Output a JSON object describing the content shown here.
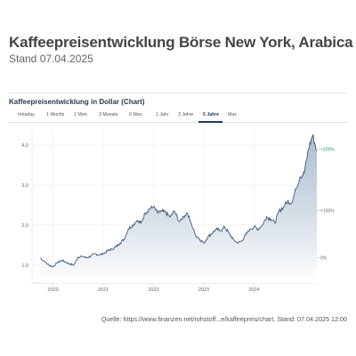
{
  "header": {
    "title": "Kaffeepreisentwicklung Börse New York, Arabica",
    "subtitle": "Stand 07.04.2025"
  },
  "card": {
    "title": "Kaffeepreisentwicklung in Dollar (Chart)"
  },
  "tabs": [
    {
      "label": "Intraday",
      "active": false
    },
    {
      "label": "1 Woche",
      "active": false
    },
    {
      "label": "1 Mon.",
      "active": false
    },
    {
      "label": "3 Monate",
      "active": false
    },
    {
      "label": "6 Mon.",
      "active": false
    },
    {
      "label": "1 Jahr",
      "active": false
    },
    {
      "label": "3 Jahre",
      "active": false
    },
    {
      "label": "5 Jahre",
      "active": true
    },
    {
      "label": "Max",
      "active": false
    }
  ],
  "source": "Quelle: https://www.finanzen.net/rohstoff...e/kaffeepreis/chart, Stand: 07.04.2025 12:00",
  "colors": {
    "line": "#3d5a7a",
    "area_top": "#9fb3c9",
    "area_bottom": "#ffffff",
    "pct_positive": "#2e9b5c",
    "tab_active": "#1f3b5c"
  },
  "chart_data": {
    "type": "area",
    "title": "",
    "xlabel": "",
    "ylabel": "",
    "x_ticks": [
      "2020",
      "2021",
      "2022",
      "2023",
      "2024"
    ],
    "y_ticks": [
      "1,0",
      "2,0",
      "3,0",
      "4,0"
    ],
    "y_tick_values": [
      1.0,
      2.0,
      3.0,
      4.0
    ],
    "ylim": [
      0.55,
      4.4
    ],
    "right_axis_ticks": [
      "+205%",
      "+100%",
      "0%"
    ],
    "right_axis_values": [
      3.9,
      2.36,
      1.18
    ],
    "grid": true,
    "series": [
      {
        "x": [
          "2019-10",
          "2019-11",
          "2019-12",
          "2020-01",
          "2020-02",
          "2020-03",
          "2020-04",
          "2020-05",
          "2020-06",
          "2020-07",
          "2020-08",
          "2020-09",
          "2020-10",
          "2020-11",
          "2020-12",
          "2021-01",
          "2021-02",
          "2021-03",
          "2021-04",
          "2021-05",
          "2021-06",
          "2021-07",
          "2021-08",
          "2021-09",
          "2021-10",
          "2021-11",
          "2021-12",
          "2022-01",
          "2022-02",
          "2022-03",
          "2022-04",
          "2022-05",
          "2022-06",
          "2022-07",
          "2022-08",
          "2022-09",
          "2022-10",
          "2022-11",
          "2022-12",
          "2023-01",
          "2023-02",
          "2023-03",
          "2023-04",
          "2023-05",
          "2023-06",
          "2023-07",
          "2023-08",
          "2023-09",
          "2023-10",
          "2023-11",
          "2023-12",
          "2024-01",
          "2024-02",
          "2024-03",
          "2024-04",
          "2024-05",
          "2024-06",
          "2024-07",
          "2024-08",
          "2024-09",
          "2024-10",
          "2024-11",
          "2024-12",
          "2025-01",
          "2025-02",
          "2025-03",
          "2025-04"
        ],
        "values": [
          1.18,
          1.08,
          1.0,
          0.96,
          1.05,
          1.12,
          1.08,
          1.02,
          1.0,
          1.2,
          1.22,
          1.18,
          1.22,
          1.28,
          1.25,
          1.28,
          1.35,
          1.4,
          1.45,
          1.55,
          1.65,
          1.9,
          2.0,
          2.1,
          2.05,
          2.3,
          2.4,
          2.45,
          2.3,
          2.35,
          2.3,
          2.2,
          2.35,
          2.1,
          2.2,
          2.3,
          2.05,
          1.75,
          1.65,
          1.55,
          1.7,
          1.8,
          1.9,
          1.85,
          1.95,
          1.8,
          1.65,
          1.55,
          1.6,
          1.75,
          1.9,
          1.95,
          1.9,
          2.0,
          2.2,
          2.15,
          2.05,
          2.35,
          2.45,
          2.6,
          2.55,
          2.9,
          3.2,
          3.3,
          3.9,
          4.25,
          3.85
        ]
      }
    ]
  }
}
